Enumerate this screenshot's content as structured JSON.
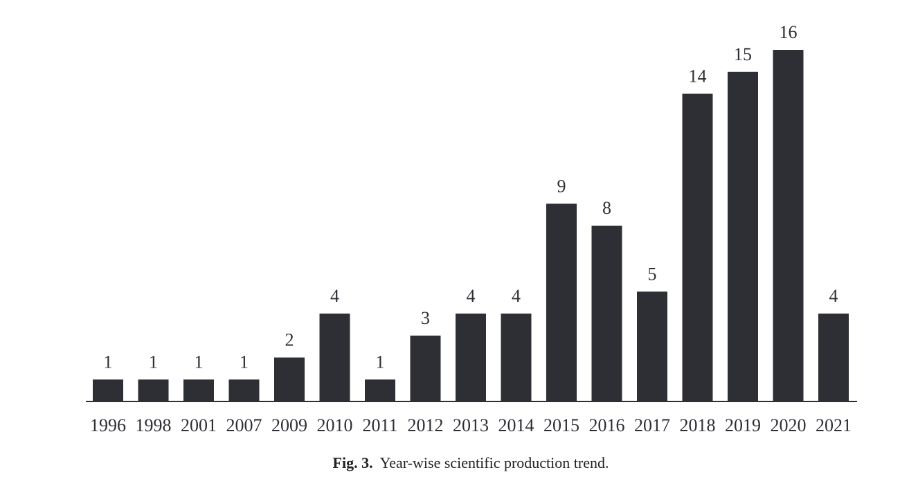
{
  "chart_data": {
    "type": "bar",
    "categories": [
      "1996",
      "1998",
      "2001",
      "2007",
      "2009",
      "2010",
      "2011",
      "2012",
      "2013",
      "2014",
      "2015",
      "2016",
      "2017",
      "2018",
      "2019",
      "2020",
      "2021"
    ],
    "values": [
      1,
      1,
      1,
      1,
      2,
      4,
      1,
      3,
      4,
      4,
      9,
      8,
      5,
      14,
      15,
      16,
      4
    ],
    "data_labels": true,
    "grid": false,
    "legend": "none",
    "bar_color": "#2d2f35",
    "ylim": [
      0,
      16
    ]
  },
  "caption": {
    "label": "Fig. 3.",
    "text": "Year-wise scientific production trend."
  }
}
